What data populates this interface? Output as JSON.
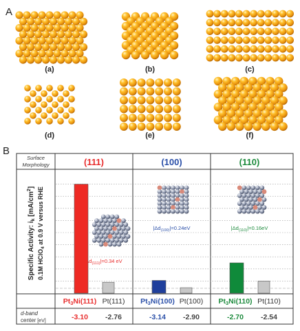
{
  "panel_a": {
    "label": "A",
    "lattices": [
      {
        "label": "(a)",
        "pattern": "hex"
      },
      {
        "label": "(b)",
        "pattern": "centered-square"
      },
      {
        "label": "(c)",
        "pattern": "rows"
      },
      {
        "label": "(d)",
        "pattern": "sparse-centered"
      },
      {
        "label": "(e)",
        "pattern": "square"
      },
      {
        "label": "(f)",
        "pattern": "dense-rows"
      }
    ],
    "sphere_color": "#f4a91a"
  },
  "panel_b": {
    "label": "B",
    "header_row_label_line1": "Surface",
    "header_row_label_line2": "Morphology",
    "ylabel_line1": "Specific Activity: i",
    "ylabel_sub1": "k",
    "ylabel_rest1": " [mA/cm",
    "ylabel_sup1": "2",
    "ylabel_close1": "]",
    "ylabel_line2": "0.1M HClO",
    "ylabel_sub2": "4",
    "ylabel_rest2": " at 0.9 V versus RHE",
    "dband_label_line1": "d-band",
    "dband_label_line2": "center",
    "dband_unit": "[eV]"
  },
  "chart_data": {
    "type": "bar",
    "groups": [
      {
        "surface": "(111)",
        "color": "#e82c2c",
        "annotation": "|Δd",
        "annotation_sub": "(111)",
        "annotation_value": "|=0.34 eV",
        "bars": [
          {
            "name": "Pt3Ni(111)",
            "prefix": "Pt",
            "sub": "3",
            "suffix": "Ni(111)",
            "value": 18.0,
            "color": "#ee2a24",
            "dband": "-3.10"
          },
          {
            "name": "Pt(111)",
            "prefix": "Pt(111)",
            "sub": "",
            "suffix": "",
            "value": 1.8,
            "color": "#c8c8c8",
            "dband": "-2.76"
          }
        ]
      },
      {
        "surface": "(100)",
        "color": "#2a4fa8",
        "annotation": "|Δd",
        "annotation_sub": "(100)",
        "annotation_value": "|=0.24eV",
        "bars": [
          {
            "name": "Pt3Ni(100)",
            "prefix": "Pt",
            "sub": "3",
            "suffix": "Ni(100)",
            "value": 2.1,
            "color": "#1f3f9c",
            "dband": "-3.14"
          },
          {
            "name": "Pt(100)",
            "prefix": "Pt(100)",
            "sub": "",
            "suffix": "",
            "value": 0.9,
            "color": "#c8c8c8",
            "dband": "-2.90"
          }
        ]
      },
      {
        "surface": "(110)",
        "color": "#1c8a3c",
        "annotation": "|Δd",
        "annotation_sub": "(110)",
        "annotation_value": "|=0.16eV",
        "bars": [
          {
            "name": "Pt3Ni(110)",
            "prefix": "Pt",
            "sub": "3",
            "suffix": "Ni(110)",
            "value": 5.0,
            "color": "#0f8a3a",
            "dband": "-2.70"
          },
          {
            "name": "Pt(110)",
            "prefix": "Pt(110)",
            "sub": "",
            "suffix": "",
            "value": 2.0,
            "color": "#c8c8c8",
            "dband": "-2.54"
          }
        ]
      }
    ],
    "ylim": [
      0,
      20
    ],
    "grid": "dotted-horizontal"
  }
}
